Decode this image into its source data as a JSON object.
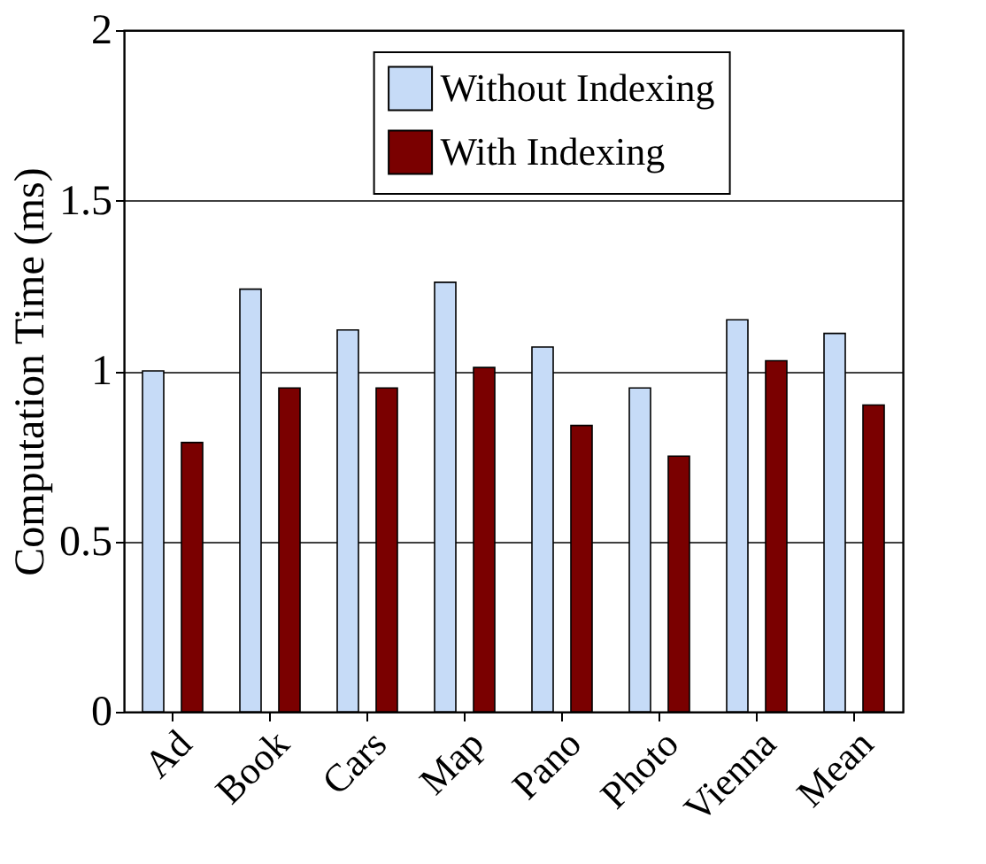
{
  "chart_data": {
    "type": "bar",
    "ylabel": "Computation Time (ms)",
    "categories": [
      "Ad",
      "Book",
      "Cars",
      "Map",
      "Pano",
      "Photo",
      "Vienna",
      "Mean"
    ],
    "series": [
      {
        "name": "Without Indexing",
        "color": "#c6dbf7",
        "values": [
          1.0,
          1.24,
          1.12,
          1.26,
          1.07,
          0.95,
          1.15,
          1.11
        ]
      },
      {
        "name": "With Indexing",
        "color": "#7a0000",
        "values": [
          0.79,
          0.95,
          0.95,
          1.01,
          0.84,
          0.75,
          1.03,
          0.9
        ]
      }
    ],
    "ylim": [
      0,
      2
    ],
    "yticks": [
      0,
      0.5,
      1,
      1.5,
      2
    ],
    "grid": "y",
    "legend": "top"
  }
}
